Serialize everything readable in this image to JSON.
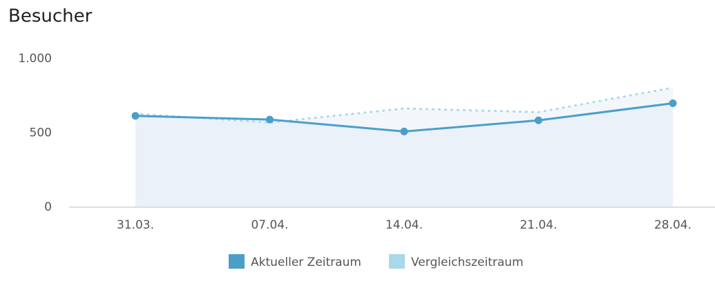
{
  "chart_data": {
    "type": "line",
    "title": "Besucher",
    "categories": [
      "31.03.",
      "07.04.",
      "14.04.",
      "21.04.",
      "28.04."
    ],
    "series": [
      {
        "name": "Aktueller Zeitraum",
        "color": "#4a9fc9",
        "values": [
          615,
          590,
          510,
          585,
          700
        ]
      },
      {
        "name": "Vergleichszeitraum",
        "color": "#a8d8ea",
        "values": [
          630,
          570,
          665,
          640,
          805
        ]
      }
    ],
    "ylim": [
      0,
      1000
    ],
    "yticks": [
      0,
      500,
      {
        "value": 1000,
        "label": "1.000"
      }
    ],
    "grid": false
  }
}
